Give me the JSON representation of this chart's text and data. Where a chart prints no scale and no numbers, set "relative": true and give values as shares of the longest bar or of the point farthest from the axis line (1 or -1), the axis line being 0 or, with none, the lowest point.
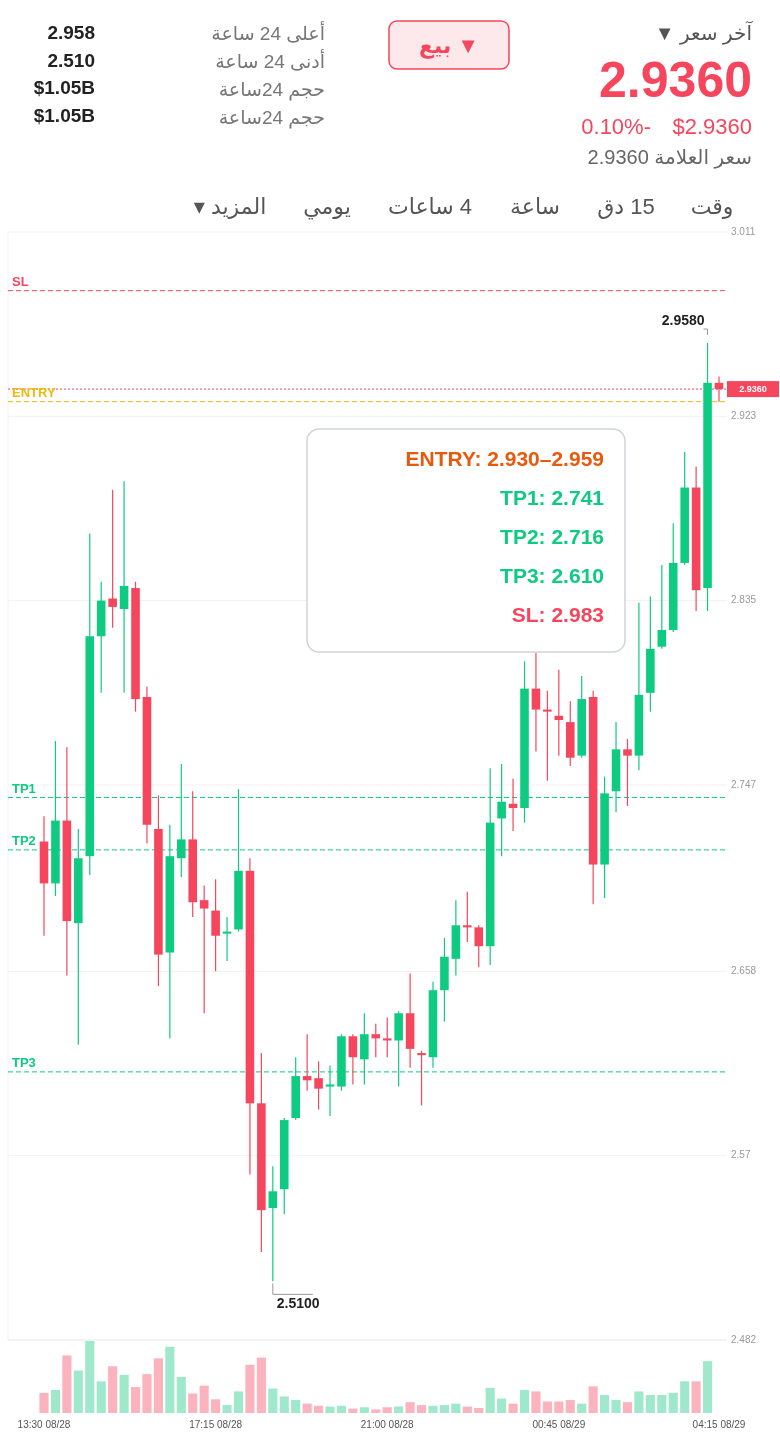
{
  "chart_data": [
    {
      "type": "other",
      "annotations": [
        "آخر سعر ▼",
        "2.9360",
        "$2.9360",
        "0.10%-",
        "سعر العلامة 2.9360",
        "أعلى 24 ساعة",
        "2.958",
        "أدنى 24 ساعة",
        "2.510",
        "حجم 24ساعة",
        "$1.05B",
        "حجم 24ساعة",
        "$1.05B",
        "▼ بيع",
        "وقت",
        "15 دق",
        "ساعة",
        "4 ساعات",
        "يومي",
        "المزيد ▾"
      ]
    },
    {
      "type": "candlestick",
      "categories": [
        null,
        null,
        null,
        null,
        null,
        null,
        null,
        null,
        null,
        null,
        null,
        null,
        null,
        null,
        null,
        null,
        null,
        null,
        null,
        null,
        null,
        null,
        null,
        null,
        null,
        null,
        null,
        null,
        null,
        null,
        null,
        null,
        null,
        null,
        null,
        null,
        null,
        null,
        null,
        null,
        null,
        null,
        null,
        null,
        null,
        null,
        null,
        null,
        null,
        null,
        null,
        null,
        null,
        null,
        null,
        null,
        null,
        null,
        null,
        null
      ],
      "ohlc": [
        [
          2.72,
          2.732,
          2.675,
          2.7
        ],
        [
          2.7,
          2.768,
          2.694,
          2.73
        ],
        [
          2.73,
          2.765,
          2.656,
          2.682
        ],
        [
          2.681,
          2.726,
          2.623,
          2.712
        ],
        [
          2.713,
          2.867,
          2.704,
          2.818
        ],
        [
          2.818,
          2.844,
          2.791,
          2.835
        ],
        [
          2.836,
          2.888,
          2.822,
          2.832
        ],
        [
          2.831,
          2.892,
          2.791,
          2.842
        ],
        [
          2.841,
          2.844,
          2.782,
          2.788
        ],
        [
          2.789,
          2.794,
          2.719,
          2.728
        ],
        [
          2.726,
          2.742,
          2.651,
          2.666
        ],
        [
          2.667,
          2.728,
          2.626,
          2.713
        ],
        [
          2.712,
          2.757,
          2.703,
          2.721
        ],
        [
          2.721,
          2.744,
          2.684,
          2.691
        ],
        [
          2.692,
          2.699,
          2.638,
          2.688
        ],
        [
          2.687,
          2.702,
          2.658,
          2.675
        ],
        [
          2.676,
          2.684,
          2.663,
          2.677
        ],
        [
          2.678,
          2.745,
          2.677,
          2.706
        ],
        [
          2.706,
          2.712,
          2.561,
          2.595
        ],
        [
          2.595,
          2.619,
          2.524,
          2.544
        ],
        [
          2.545,
          2.565,
          2.51,
          2.553
        ],
        [
          2.554,
          2.588,
          2.542,
          2.587
        ],
        [
          2.588,
          2.617,
          2.587,
          2.608
        ],
        [
          2.608,
          2.628,
          2.601,
          2.606
        ],
        [
          2.607,
          2.615,
          2.592,
          2.602
        ],
        [
          2.603,
          2.613,
          2.589,
          2.604
        ],
        [
          2.603,
          2.628,
          2.601,
          2.627
        ],
        [
          2.627,
          2.628,
          2.604,
          2.617
        ],
        [
          2.616,
          2.638,
          2.604,
          2.628
        ],
        [
          2.628,
          2.633,
          2.617,
          2.626
        ],
        [
          2.626,
          2.636,
          2.617,
          2.625
        ],
        [
          2.625,
          2.639,
          2.603,
          2.638
        ],
        [
          2.638,
          2.657,
          2.612,
          2.621
        ],
        [
          2.619,
          2.62,
          2.594,
          2.618
        ],
        [
          2.617,
          2.653,
          2.612,
          2.649
        ],
        [
          2.649,
          2.674,
          2.634,
          2.665
        ],
        [
          2.664,
          2.692,
          2.656,
          2.68
        ],
        [
          2.68,
          2.696,
          2.672,
          2.679
        ],
        [
          2.679,
          2.68,
          2.66,
          2.67
        ],
        [
          2.67,
          2.755,
          2.661,
          2.729
        ],
        [
          2.731,
          2.757,
          2.713,
          2.739
        ],
        [
          2.738,
          2.75,
          2.725,
          2.736
        ],
        [
          2.736,
          2.806,
          2.729,
          2.793
        ],
        [
          2.793,
          2.81,
          2.763,
          2.783
        ],
        [
          2.783,
          2.792,
          2.749,
          2.782
        ],
        [
          2.78,
          2.802,
          2.761,
          2.778
        ],
        [
          2.777,
          2.787,
          2.756,
          2.76
        ],
        [
          2.761,
          2.799,
          2.76,
          2.788
        ],
        [
          2.789,
          2.792,
          2.69,
          2.709
        ],
        [
          2.709,
          2.751,
          2.693,
          2.743
        ],
        [
          2.744,
          2.777,
          2.734,
          2.764
        ],
        [
          2.764,
          2.769,
          2.737,
          2.761
        ],
        [
          2.761,
          2.834,
          2.754,
          2.79
        ],
        [
          2.791,
          2.837,
          2.782,
          2.812
        ],
        [
          2.813,
          2.852,
          2.812,
          2.821
        ],
        [
          2.821,
          2.872,
          2.82,
          2.853
        ],
        [
          2.853,
          2.906,
          2.852,
          2.889
        ],
        [
          2.889,
          2.899,
          2.83,
          2.84
        ],
        [
          2.841,
          2.958,
          2.83,
          2.939
        ],
        [
          2.939,
          2.942,
          2.93,
          2.936
        ]
      ],
      "colors": [
        "#f6465d",
        "#0ecb81",
        "#f6465d",
        "#0ecb81",
        "#0ecb81",
        "#0ecb81",
        "#f6465d",
        "#0ecb81",
        "#f6465d",
        "#f6465d",
        "#f6465d",
        "#0ecb81",
        "#0ecb81",
        "#f6465d",
        "#f6465d",
        "#f6465d",
        "#0ecb81",
        "#0ecb81",
        "#f6465d",
        "#f6465d",
        "#0ecb81",
        "#0ecb81",
        "#0ecb81",
        "#f6465d",
        "#f6465d",
        "#0ecb81",
        "#0ecb81",
        "#f6465d",
        "#0ecb81",
        "#f6465d",
        "#f6465d",
        "#0ecb81",
        "#f6465d",
        "#f6465d",
        "#0ecb81",
        "#0ecb81",
        "#0ecb81",
        "#f6465d",
        "#f6465d",
        "#0ecb81",
        "#0ecb81",
        "#f6465d",
        "#0ecb81",
        "#f6465d",
        "#f6465d",
        "#f6465d",
        "#f6465d",
        "#0ecb81",
        "#f6465d",
        "#0ecb81",
        "#0ecb81",
        "#f6465d",
        "#0ecb81",
        "#0ecb81",
        "#0ecb81",
        "#0ecb81",
        "#0ecb81",
        "#f6465d",
        "#0ecb81",
        "#f6465d"
      ],
      "ylim": [
        2.482,
        3.011
      ],
      "yticks": [
        3.011,
        2.923,
        2.835,
        2.747,
        2.658,
        2.57,
        2.482
      ],
      "tick_labels": "y",
      "grid": "y",
      "ref_lines": [
        {
          "axis": "y",
          "value": 2.983,
          "label": "SL",
          "color": "#f6465d",
          "line_style": "dashed"
        },
        {
          "axis": "y",
          "value": 2.936,
          "label": "2.9360",
          "color": "#f6465d",
          "line_style": "dotted"
        },
        {
          "axis": "y",
          "value": 2.93,
          "label": "ENTRY",
          "color": "#f0b90b",
          "line_style": "dashed"
        },
        {
          "axis": "y",
          "value": 2.741,
          "label": "TP1",
          "color": "#0ecb81",
          "line_style": "dashed"
        },
        {
          "axis": "y",
          "value": 2.716,
          "label": "TP2",
          "color": "#0ecb81",
          "line_style": "dashed"
        },
        {
          "axis": "y",
          "value": 2.61,
          "label": "TP3",
          "color": "#0ecb81",
          "line_style": "dashed"
        }
      ],
      "annotations": [
        "2.9580",
        "2.5100",
        "ENTRY: 2.930–2.959",
        "TP1: 2.741",
        "TP2: 2.716",
        "TP3: 2.610",
        "SL: 2.983"
      ]
    },
    {
      "type": "bar",
      "relative": true,
      "categories": [
        "13:30 08/28",
        null,
        null,
        null,
        null,
        null,
        null,
        null,
        null,
        null,
        null,
        null,
        null,
        null,
        null,
        "17:15 08/28",
        null,
        null,
        null,
        null,
        null,
        null,
        null,
        null,
        null,
        null,
        null,
        null,
        null,
        null,
        "21:00 08/28",
        null,
        null,
        null,
        null,
        null,
        null,
        null,
        null,
        null,
        null,
        null,
        null,
        null,
        null,
        "00:45 08/29",
        null,
        null,
        null,
        null,
        null,
        null,
        null,
        null,
        null,
        null,
        null,
        null,
        null,
        "04:15 08/29"
      ],
      "values": [
        0.28,
        0.32,
        0.8,
        0.59,
        1,
        0.44,
        0.65,
        0.53,
        0.36,
        0.54,
        0.76,
        0.92,
        0.5,
        0.27,
        0.38,
        0.19,
        0.11,
        0.3,
        0.67,
        0.77,
        0.34,
        0.23,
        0.18,
        0.13,
        0.1,
        0.09,
        0.1,
        0.06,
        0.08,
        0.05,
        0.08,
        0.09,
        0.15,
        0.11,
        0.1,
        0.11,
        0.13,
        0.09,
        0.07,
        0.35,
        0.2,
        0.13,
        0.32,
        0.3,
        0.16,
        0.16,
        0.18,
        0.13,
        0.37,
        0.25,
        0.18,
        0.15,
        0.3,
        0.25,
        0.25,
        0.28,
        0.44,
        0.44,
        0.72,
        null
      ],
      "colors": [
        "#fbb4be",
        "#a0e8cc",
        "#fbb4be",
        "#a0e8cc",
        "#a0e8cc",
        "#a0e8cc",
        "#fbb4be",
        "#a0e8cc",
        "#fbb4be",
        "#fbb4be",
        "#fbb4be",
        "#a0e8cc",
        "#a0e8cc",
        "#fbb4be",
        "#fbb4be",
        "#fbb4be",
        "#a0e8cc",
        "#a0e8cc",
        "#fbb4be",
        "#fbb4be",
        "#a0e8cc",
        "#a0e8cc",
        "#a0e8cc",
        "#fbb4be",
        "#fbb4be",
        "#a0e8cc",
        "#a0e8cc",
        "#fbb4be",
        "#a0e8cc",
        "#fbb4be",
        "#fbb4be",
        "#a0e8cc",
        "#fbb4be",
        "#fbb4be",
        "#a0e8cc",
        "#a0e8cc",
        "#a0e8cc",
        "#fbb4be",
        "#fbb4be",
        "#a0e8cc",
        "#a0e8cc",
        "#fbb4be",
        "#a0e8cc",
        "#fbb4be",
        "#fbb4be",
        "#fbb4be",
        "#fbb4be",
        "#a0e8cc",
        "#fbb4be",
        "#a0e8cc",
        "#a0e8cc",
        "#fbb4be",
        "#a0e8cc",
        "#a0e8cc",
        "#a0e8cc",
        "#a0e8cc",
        "#a0e8cc",
        "#fbb4be",
        "#a0e8cc",
        null
      ]
    }
  ]
}
